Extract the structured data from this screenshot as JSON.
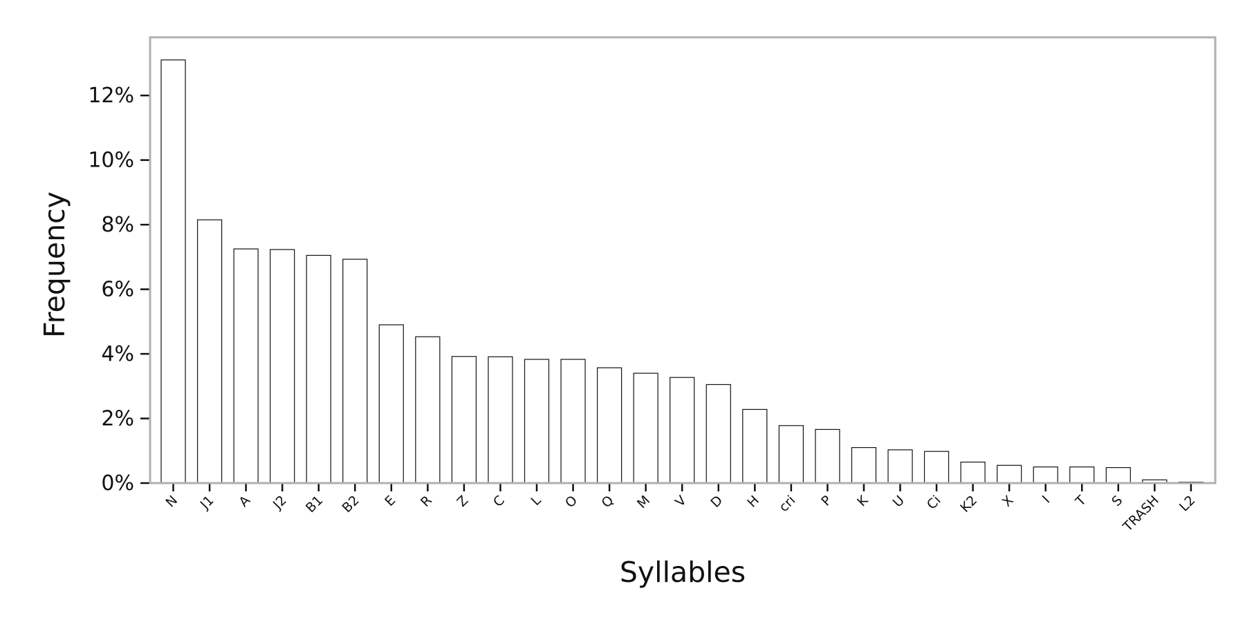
{
  "chart_data": {
    "type": "bar",
    "title": "",
    "xlabel": "Syllables",
    "ylabel": "Frequency",
    "categories": [
      "N",
      "J1",
      "A",
      "J2",
      "B1",
      "B2",
      "E",
      "R",
      "Z",
      "C",
      "L",
      "O",
      "Q",
      "M",
      "V",
      "D",
      "H",
      "cri",
      "P",
      "K",
      "U",
      "Ci",
      "K2",
      "X",
      "I",
      "T",
      "S",
      "TRASH",
      "L2"
    ],
    "values": [
      13.1,
      8.15,
      7.25,
      7.23,
      7.05,
      6.93,
      4.9,
      4.53,
      3.92,
      3.91,
      3.83,
      3.83,
      3.57,
      3.4,
      3.27,
      3.05,
      2.28,
      1.78,
      1.66,
      1.1,
      1.03,
      0.98,
      0.65,
      0.55,
      0.5,
      0.5,
      0.48,
      0.1,
      0.03
    ],
    "ylim": [
      0,
      13.8
    ],
    "yticks": [
      0,
      2,
      4,
      6,
      8,
      10,
      12
    ],
    "ytick_labels": [
      "0%",
      "2%",
      "4%",
      "6%",
      "8%",
      "10%",
      "12%"
    ],
    "grid": false,
    "colors": {
      "bar_fill": "#ffffff",
      "bar_edge": "#111111",
      "frame": "#b0b0b0"
    }
  }
}
